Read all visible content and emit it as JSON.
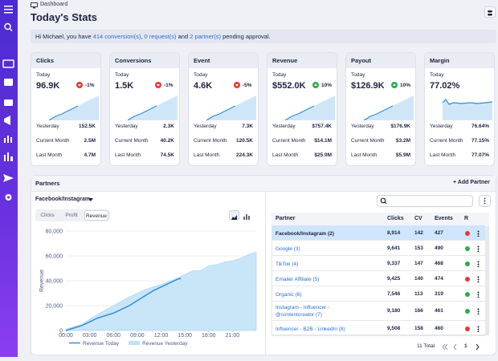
{
  "header": {
    "breadcrumb": "Dashboard",
    "title": "Today's Stats"
  },
  "notice": [
    {
      "text": "Hi Michael, you have ",
      "link": false
    },
    {
      "text": "414 conversion(s)",
      "link": true
    },
    {
      "text": ", ",
      "link": false
    },
    {
      "text": "0 request(s)",
      "link": true
    },
    {
      "text": " and ",
      "link": false
    },
    {
      "text": "2 partner(s)",
      "link": true
    },
    {
      "text": " pending approval.",
      "link": false
    }
  ],
  "cards": [
    {
      "title": "Clicks",
      "today_label": "Today",
      "today": "96.9K",
      "change": "-1%",
      "trend": "down",
      "rows": [
        {
          "label": "Yesterday",
          "value": "152.5K"
        },
        {
          "label": "Current Month",
          "value": "2.5M"
        },
        {
          "label": "Last Month",
          "value": "4.7M"
        }
      ]
    },
    {
      "title": "Conversions",
      "today_label": "Today",
      "today": "1.5K",
      "change": "-1%",
      "trend": "down",
      "rows": [
        {
          "label": "Yesterday",
          "value": "2.3K"
        },
        {
          "label": "Current Month",
          "value": "40.2K"
        },
        {
          "label": "Last Month",
          "value": "74.5K"
        }
      ]
    },
    {
      "title": "Event",
      "today_label": "Today",
      "today": "4.6K",
      "change": "-5%",
      "trend": "down",
      "rows": [
        {
          "label": "Yesterday",
          "value": "7.3K"
        },
        {
          "label": "Current Month",
          "value": "120.5K"
        },
        {
          "label": "Last Month",
          "value": "224.3K"
        }
      ]
    },
    {
      "title": "Revenue",
      "today_label": "Today",
      "today": "$552.0K",
      "change": "10%",
      "trend": "up",
      "rows": [
        {
          "label": "Yesterday",
          "value": "$757.4K"
        },
        {
          "label": "Current Month",
          "value": "$14.1M"
        },
        {
          "label": "Last Month",
          "value": "$25.9M"
        }
      ]
    },
    {
      "title": "Payout",
      "today_label": "Today",
      "today": "$126.9K",
      "change": "10%",
      "trend": "up",
      "rows": [
        {
          "label": "Yesterday",
          "value": "$176.9K"
        },
        {
          "label": "Current Month",
          "value": "$3.2M"
        },
        {
          "label": "Last Month",
          "value": "$5.9M"
        }
      ]
    },
    {
      "title": "Margin",
      "today_label": "Today",
      "today": "77.02%",
      "rows": [
        {
          "label": "Yesterday",
          "value": "76.64%"
        },
        {
          "label": "Current Month",
          "value": "77.15%"
        },
        {
          "label": "Last Month",
          "value": "77.07%"
        }
      ]
    }
  ],
  "partners": {
    "title": "Partners",
    "add_button": "+ Add Partner",
    "selected_partner": "Facebook/Instagram",
    "tabs": [
      "Clicks",
      "Profit",
      "Revenue"
    ],
    "active_tab": 2,
    "chart": {
      "type": "line",
      "y_label": "Revenue",
      "xlim": [
        0,
        24
      ],
      "ylim": [
        0,
        80000
      ],
      "xticks": [
        {
          "value": 0,
          "label": "00:00"
        },
        {
          "value": 3,
          "label": "03:00"
        },
        {
          "value": 6,
          "label": "06:00"
        },
        {
          "value": 9,
          "label": "09:00"
        },
        {
          "value": 12,
          "label": "12:00"
        },
        {
          "value": 15,
          "label": "15:00"
        },
        {
          "value": 18,
          "label": "18:00"
        },
        {
          "value": 21,
          "label": "21:00"
        }
      ],
      "yticks": [
        0,
        {
          "value": 20000,
          "label": "20,000"
        },
        {
          "value": 40000,
          "label": "40,000"
        },
        {
          "value": 60000,
          "label": "60,000"
        },
        {
          "value": 80000,
          "label": "80,000"
        }
      ],
      "grid": true,
      "series": [
        {
          "name": "Revenue Today",
          "color": "#2e8fd8",
          "style": "line",
          "x": [
            0,
            1,
            2,
            3,
            4,
            5,
            6,
            7,
            8,
            9,
            10,
            11,
            12,
            13,
            14,
            14.5
          ],
          "values": [
            0,
            2000,
            4000,
            7000,
            10000,
            12000,
            14000,
            17000,
            20000,
            24000,
            28000,
            32000,
            35000,
            38000,
            41000,
            42000
          ]
        },
        {
          "name": "Revenue Yesterday",
          "color": "#bfe0f7",
          "style": "area",
          "x": [
            0,
            2,
            4,
            6,
            8,
            10,
            12,
            14,
            15,
            16,
            17,
            18,
            19,
            20,
            21,
            22,
            23,
            24
          ],
          "values": [
            1000,
            5000,
            13000,
            20000,
            27000,
            33000,
            37000,
            42000,
            45000,
            48000,
            48000,
            52000,
            53000,
            55000,
            56000,
            58000,
            61000,
            63000
          ]
        }
      ]
    },
    "table": {
      "columns": [
        "Partner",
        "Clicks",
        "CV",
        "Events",
        "R"
      ],
      "selected_row": 0,
      "rows": [
        {
          "partner": "Facebook/Instagram (2)",
          "clicks": "8,914",
          "cv": "142",
          "events": "427",
          "status": "#e53935"
        },
        {
          "partner": "Google (3)",
          "clicks": "9,641",
          "cv": "153",
          "events": "490",
          "status": "#2eaa4f"
        },
        {
          "partner": "TikTok (4)",
          "clicks": "9,337",
          "cv": "147",
          "events": "468",
          "status": "#2eaa4f"
        },
        {
          "partner": "Emailer Affiliate (5)",
          "clicks": "9,425",
          "cv": "140",
          "events": "474",
          "status": "#e53935"
        },
        {
          "partner": "Organic (6)",
          "clicks": "7,546",
          "cv": "113",
          "events": "319",
          "status": "#2eaa4f"
        },
        {
          "partner": "Instagram - Influencer - @contentcreator (7)",
          "clicks": "9,180",
          "cv": "166",
          "events": "461",
          "status": "#2eaa4f"
        },
        {
          "partner": "Influencer - B2B - LinkedIn (8)",
          "clicks": "9,508",
          "cv": "158",
          "events": "460",
          "status": "#e53935"
        }
      ],
      "total": "11 Total",
      "page": "1"
    }
  }
}
